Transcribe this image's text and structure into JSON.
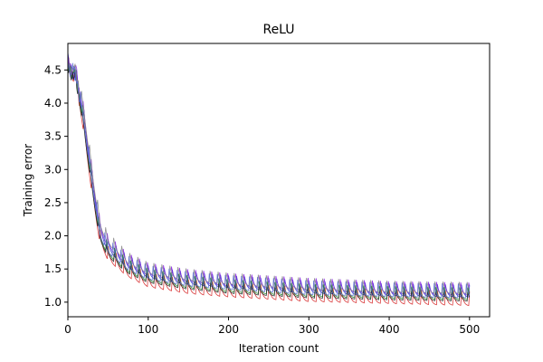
{
  "chart_data": {
    "type": "line",
    "title": "ReLU",
    "xlabel": "Iteration count",
    "ylabel": "Training error",
    "xlim": [
      0,
      525
    ],
    "ylim": [
      0.78,
      4.9
    ],
    "xticks": [
      0,
      100,
      200,
      300,
      400,
      500
    ],
    "yticks": [
      1.0,
      1.5,
      2.0,
      2.5,
      3.0,
      3.5,
      4.0,
      4.5
    ],
    "ytick_labels": [
      "1.0",
      "1.5",
      "2.0",
      "2.5",
      "3.0",
      "3.5",
      "4.0",
      "4.5"
    ],
    "grid": false,
    "legend": "none",
    "oscillation_period": 10,
    "series": [
      {
        "color": "#d62728",
        "x": [
          0,
          10,
          20,
          30,
          40,
          50,
          75,
          100,
          150,
          200,
          300,
          400,
          500
        ],
        "y": [
          4.55,
          4.4,
          3.6,
          2.7,
          1.95,
          1.7,
          1.45,
          1.3,
          1.2,
          1.15,
          1.08,
          1.05,
          1.02
        ],
        "osc": 0.22
      },
      {
        "color": "#2a2ad0",
        "x": [
          0,
          10,
          20,
          30,
          40,
          50,
          75,
          100,
          150,
          200,
          300,
          400,
          500
        ],
        "y": [
          4.6,
          4.45,
          3.8,
          2.9,
          2.1,
          1.85,
          1.6,
          1.45,
          1.35,
          1.3,
          1.22,
          1.18,
          1.16
        ],
        "osc": 0.25
      },
      {
        "color": "#8a2be2",
        "x": [
          0,
          10,
          20,
          30,
          40,
          50,
          75,
          100,
          150,
          200,
          300,
          400,
          500
        ],
        "y": [
          4.62,
          4.5,
          3.85,
          2.95,
          2.15,
          1.9,
          1.62,
          1.48,
          1.38,
          1.32,
          1.25,
          1.2,
          1.18
        ],
        "osc": 0.23
      },
      {
        "color": "#228b22",
        "x": [
          0,
          10,
          20,
          30,
          40,
          50,
          75,
          100,
          150,
          200,
          300,
          400,
          500
        ],
        "y": [
          4.58,
          4.42,
          3.7,
          2.8,
          2.0,
          1.78,
          1.52,
          1.38,
          1.28,
          1.22,
          1.15,
          1.12,
          1.1
        ],
        "osc": 0.2
      },
      {
        "color": "#222222",
        "x": [
          0,
          10,
          20,
          30,
          40,
          50,
          75,
          100,
          150,
          200,
          300,
          400,
          500
        ],
        "y": [
          4.55,
          4.38,
          3.65,
          2.75,
          1.98,
          1.75,
          1.5,
          1.36,
          1.26,
          1.2,
          1.13,
          1.1,
          1.08
        ],
        "osc": 0.2
      },
      {
        "color": "#888888",
        "x": [
          0,
          10,
          20,
          30,
          40,
          50,
          75,
          100,
          150,
          200,
          300,
          400,
          500
        ],
        "y": [
          4.6,
          4.5,
          3.9,
          3.0,
          2.2,
          1.95,
          1.65,
          1.5,
          1.4,
          1.34,
          1.26,
          1.22,
          1.2
        ],
        "osc": 0.22
      },
      {
        "color": "#5a6acf",
        "x": [
          0,
          10,
          20,
          30,
          40,
          50,
          75,
          100,
          150,
          200,
          300,
          400,
          500
        ],
        "y": [
          4.57,
          4.46,
          3.75,
          2.85,
          2.05,
          1.82,
          1.56,
          1.42,
          1.32,
          1.27,
          1.19,
          1.16,
          1.14
        ],
        "osc": 0.24
      }
    ]
  }
}
